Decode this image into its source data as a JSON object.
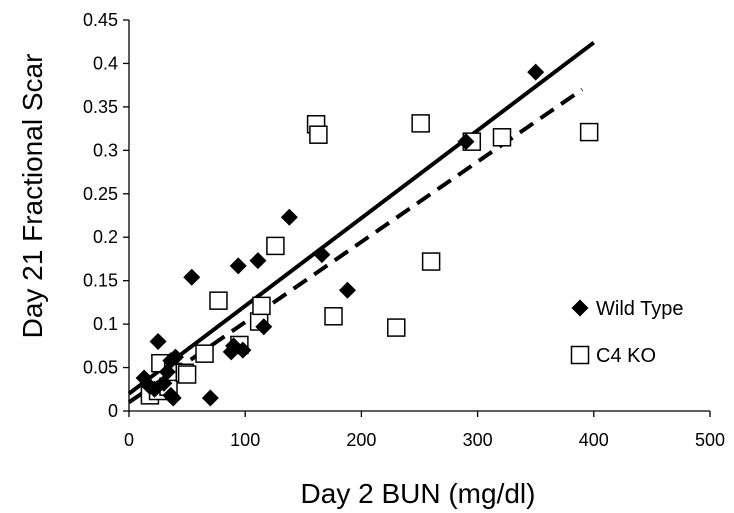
{
  "chart_data": {
    "type": "scatter",
    "xlabel": "Day 2 BUN (mg/dl)",
    "ylabel": "Day 21 Fractional Scar",
    "xlim": [
      0,
      500
    ],
    "ylim": [
      0,
      0.45
    ],
    "xticks": [
      0,
      100,
      200,
      300,
      400,
      500
    ],
    "yticks": [
      0,
      0.05,
      0.1,
      0.15,
      0.2,
      0.25,
      0.3,
      0.35,
      0.4,
      0.45
    ],
    "xtick_labels": [
      "0",
      "100",
      "200",
      "300",
      "400",
      "500"
    ],
    "ytick_labels": [
      "0",
      "0.05",
      "0.1",
      "0.15",
      "0.2",
      "0.25",
      "0.3",
      "0.35",
      "0.4",
      "0.45"
    ],
    "grid": false,
    "legend_position": "right",
    "series": [
      {
        "name": "Wild Type",
        "marker": "diamond",
        "color": "#000000",
        "points": [
          [
            13,
            0.038
          ],
          [
            18,
            0.028
          ],
          [
            22,
            0.025
          ],
          [
            25,
            0.08
          ],
          [
            30,
            0.032
          ],
          [
            33,
            0.045
          ],
          [
            36,
            0.018
          ],
          [
            36,
            0.058
          ],
          [
            38,
            0.015
          ],
          [
            40,
            0.062
          ],
          [
            54,
            0.154
          ],
          [
            70,
            0.015
          ],
          [
            88,
            0.068
          ],
          [
            90,
            0.075
          ],
          [
            94,
            0.167
          ],
          [
            98,
            0.07
          ],
          [
            111,
            0.173
          ],
          [
            116,
            0.097
          ],
          [
            138,
            0.223
          ],
          [
            166,
            0.18
          ],
          [
            188,
            0.139
          ],
          [
            290,
            0.31
          ],
          [
            350,
            0.39
          ]
        ],
        "trendline": {
          "style": "solid",
          "x": [
            0,
            400
          ],
          "y": [
            0.02,
            0.424
          ]
        }
      },
      {
        "name": "C4 KO",
        "marker": "square",
        "color": "#000000",
        "points": [
          [
            18,
            0.018
          ],
          [
            25,
            0.023
          ],
          [
            27,
            0.055
          ],
          [
            34,
            0.028
          ],
          [
            38,
            0.045
          ],
          [
            48,
            0.044
          ],
          [
            50,
            0.042
          ],
          [
            65,
            0.066
          ],
          [
            77,
            0.127
          ],
          [
            95,
            0.076
          ],
          [
            112,
            0.103
          ],
          [
            114,
            0.121
          ],
          [
            126,
            0.19
          ],
          [
            161,
            0.33
          ],
          [
            163,
            0.318
          ],
          [
            176,
            0.109
          ],
          [
            230,
            0.096
          ],
          [
            251,
            0.331
          ],
          [
            260,
            0.172
          ],
          [
            295,
            0.31
          ],
          [
            321,
            0.315
          ],
          [
            396,
            0.321
          ]
        ],
        "trendline": {
          "style": "dashed",
          "x": [
            0,
            390
          ],
          "y": [
            0.01,
            0.37
          ]
        }
      }
    ]
  }
}
